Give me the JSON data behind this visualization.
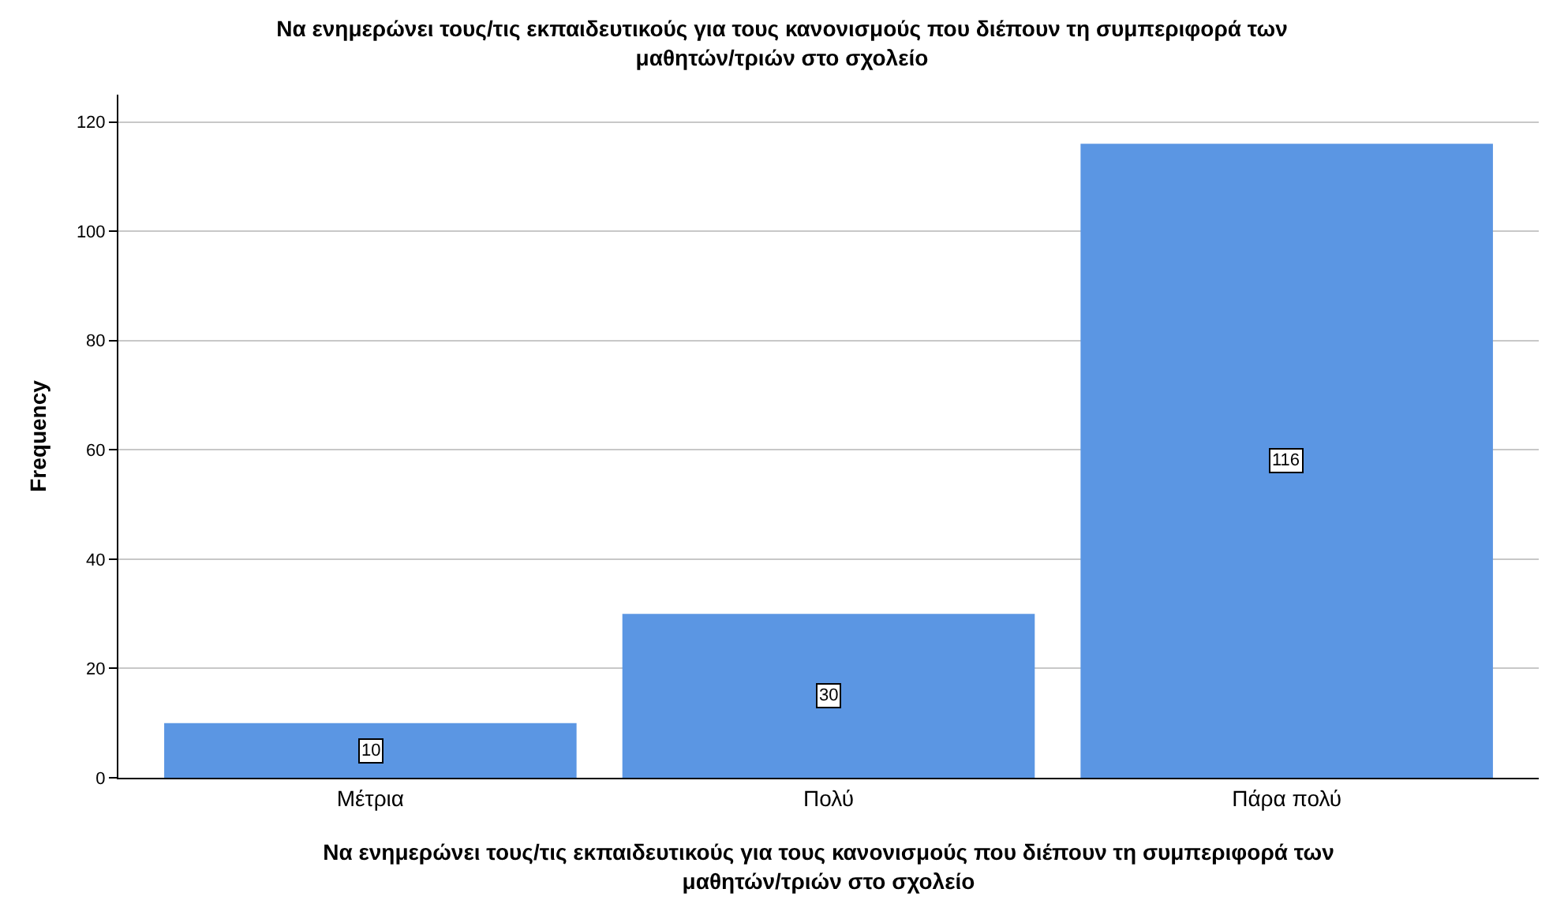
{
  "chart_data": {
    "type": "bar",
    "title": "Να ενημερώνει τους/τις εκπαιδευτικούς για τους κανονισμούς που διέπουν τη συμπεριφορά των μαθητών/τριών στο σχολείο",
    "xlabel": "Να ενημερώνει τους/τις εκπαιδευτικούς για τους κανονισμούς που διέπουν τη συμπεριφορά των μαθητών/τριών στο σχολείο",
    "ylabel": "Frequency",
    "categories": [
      "Μέτρια",
      "Πολύ",
      "Πάρα πολύ"
    ],
    "values": [
      10,
      30,
      116
    ],
    "color": "#5b96e3",
    "ylim": [
      0,
      125
    ],
    "yticks": [
      0,
      20,
      40,
      60,
      80,
      100,
      120
    ],
    "grid": "y",
    "data_labels": true
  }
}
